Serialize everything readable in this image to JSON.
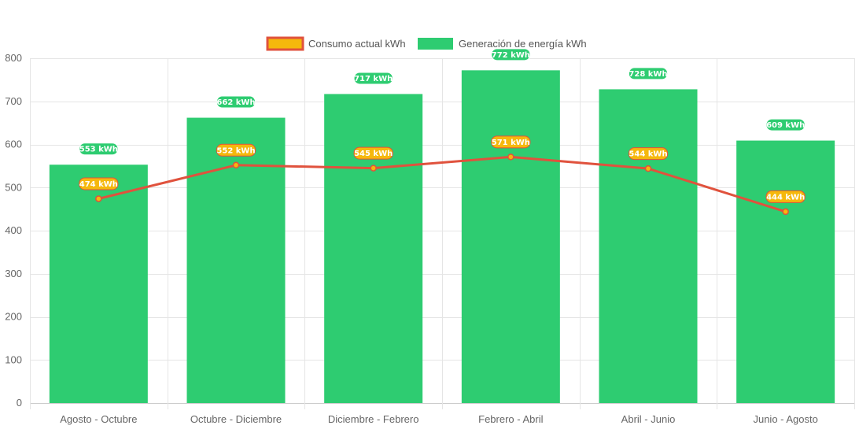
{
  "chart_data": {
    "type": "bar",
    "title": "",
    "xlabel": "",
    "ylabel": "",
    "ylim": [
      0,
      800
    ],
    "yticks": [
      0,
      100,
      200,
      300,
      400,
      500,
      600,
      700,
      800
    ],
    "grid": true,
    "legend_position": "top-center",
    "categories": [
      "Agosto - Octubre",
      "Octubre - Diciembre",
      "Diciembre - Febrero",
      "Febrero - Abril",
      "Abril - Junio",
      "Junio - Agosto"
    ],
    "series": [
      {
        "name": "Consumo actual kWh",
        "type": "line",
        "values": [
          474,
          552,
          545,
          571,
          544,
          444
        ],
        "labels": [
          "474 kWh",
          "552 kWh",
          "545 kWh",
          "571 kWh",
          "544 kWh",
          "444 kWh"
        ],
        "line_color": "#e0523d",
        "fill_color": "#f5b80c"
      },
      {
        "name": "Generación de energía kWh",
        "type": "bar",
        "values": [
          553,
          662,
          717,
          772,
          728,
          609
        ],
        "labels": [
          "553 kWh",
          "662 kWh",
          "717 kWh",
          "772 kWh",
          "728 kWh",
          "609 kWh"
        ],
        "color": "#2ecc71"
      }
    ]
  }
}
